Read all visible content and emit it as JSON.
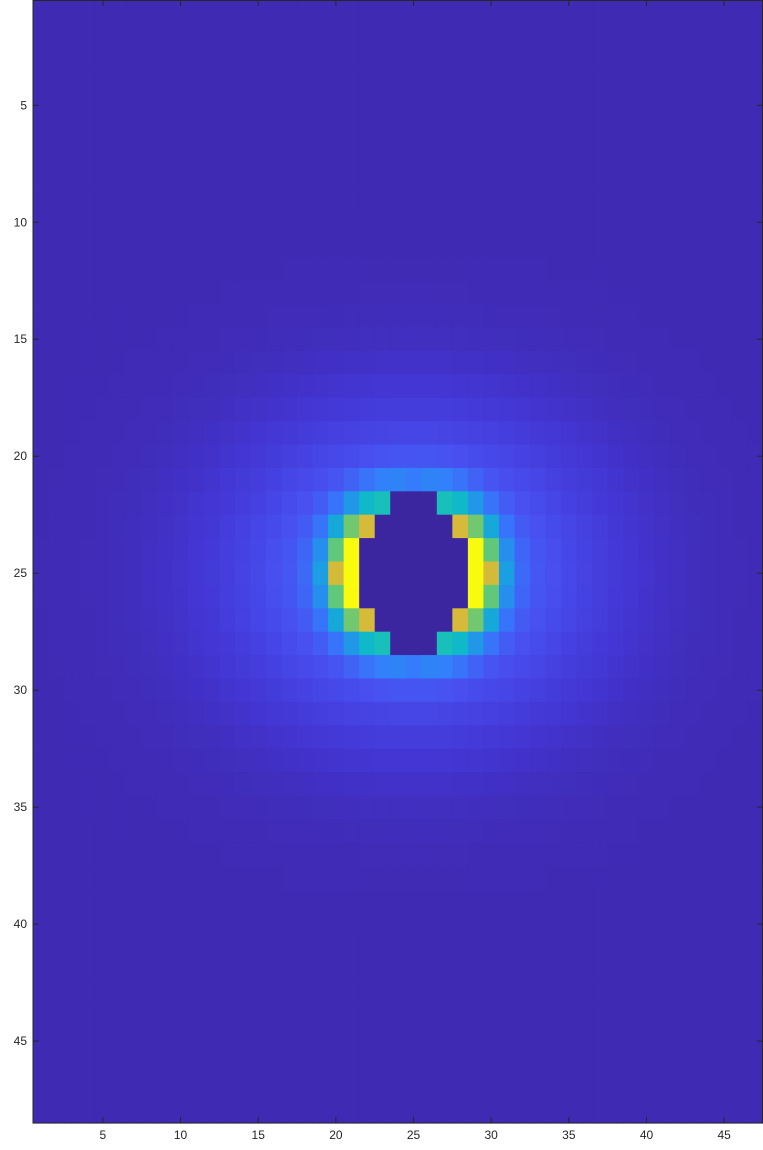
{
  "chart_data": {
    "type": "heatmap",
    "title": "",
    "xlabel": "",
    "ylabel": "",
    "xlim": [
      0.5,
      47.5
    ],
    "ylim": [
      0.5,
      48.5
    ],
    "y_direction": "reverse",
    "colormap": "parula",
    "clim": [
      0,
      1
    ],
    "grid": false,
    "n_cols": 47,
    "n_rows": 48,
    "xticks": [
      5,
      10,
      15,
      20,
      25,
      30,
      35,
      40,
      45
    ],
    "xtick_labels": [
      "5",
      "10",
      "15",
      "20",
      "25",
      "30",
      "35",
      "40",
      "45"
    ],
    "yticks": [
      5,
      10,
      15,
      20,
      25,
      30,
      35,
      40,
      45
    ],
    "ytick_labels": [
      "5",
      "10",
      "15",
      "20",
      "25",
      "30",
      "35",
      "40",
      "45"
    ],
    "field": {
      "center_x": 25,
      "center_y": 25,
      "sigma_x": 10.5,
      "sigma_y": 6.0,
      "peak": 1.0,
      "ring_radius": 3.6,
      "background": 0.02
    },
    "void_region": {
      "value": -0.02,
      "rows": [
        {
          "row": 22,
          "cols": [
            24,
            26
          ]
        },
        {
          "row": 23,
          "cols": [
            23,
            27
          ]
        },
        {
          "row": 24,
          "cols": [
            22,
            28
          ]
        },
        {
          "row": 25,
          "cols": [
            22,
            28
          ]
        },
        {
          "row": 26,
          "cols": [
            22,
            28
          ]
        },
        {
          "row": 27,
          "cols": [
            23,
            27
          ]
        },
        {
          "row": 28,
          "cols": [
            24,
            26
          ]
        }
      ]
    }
  }
}
